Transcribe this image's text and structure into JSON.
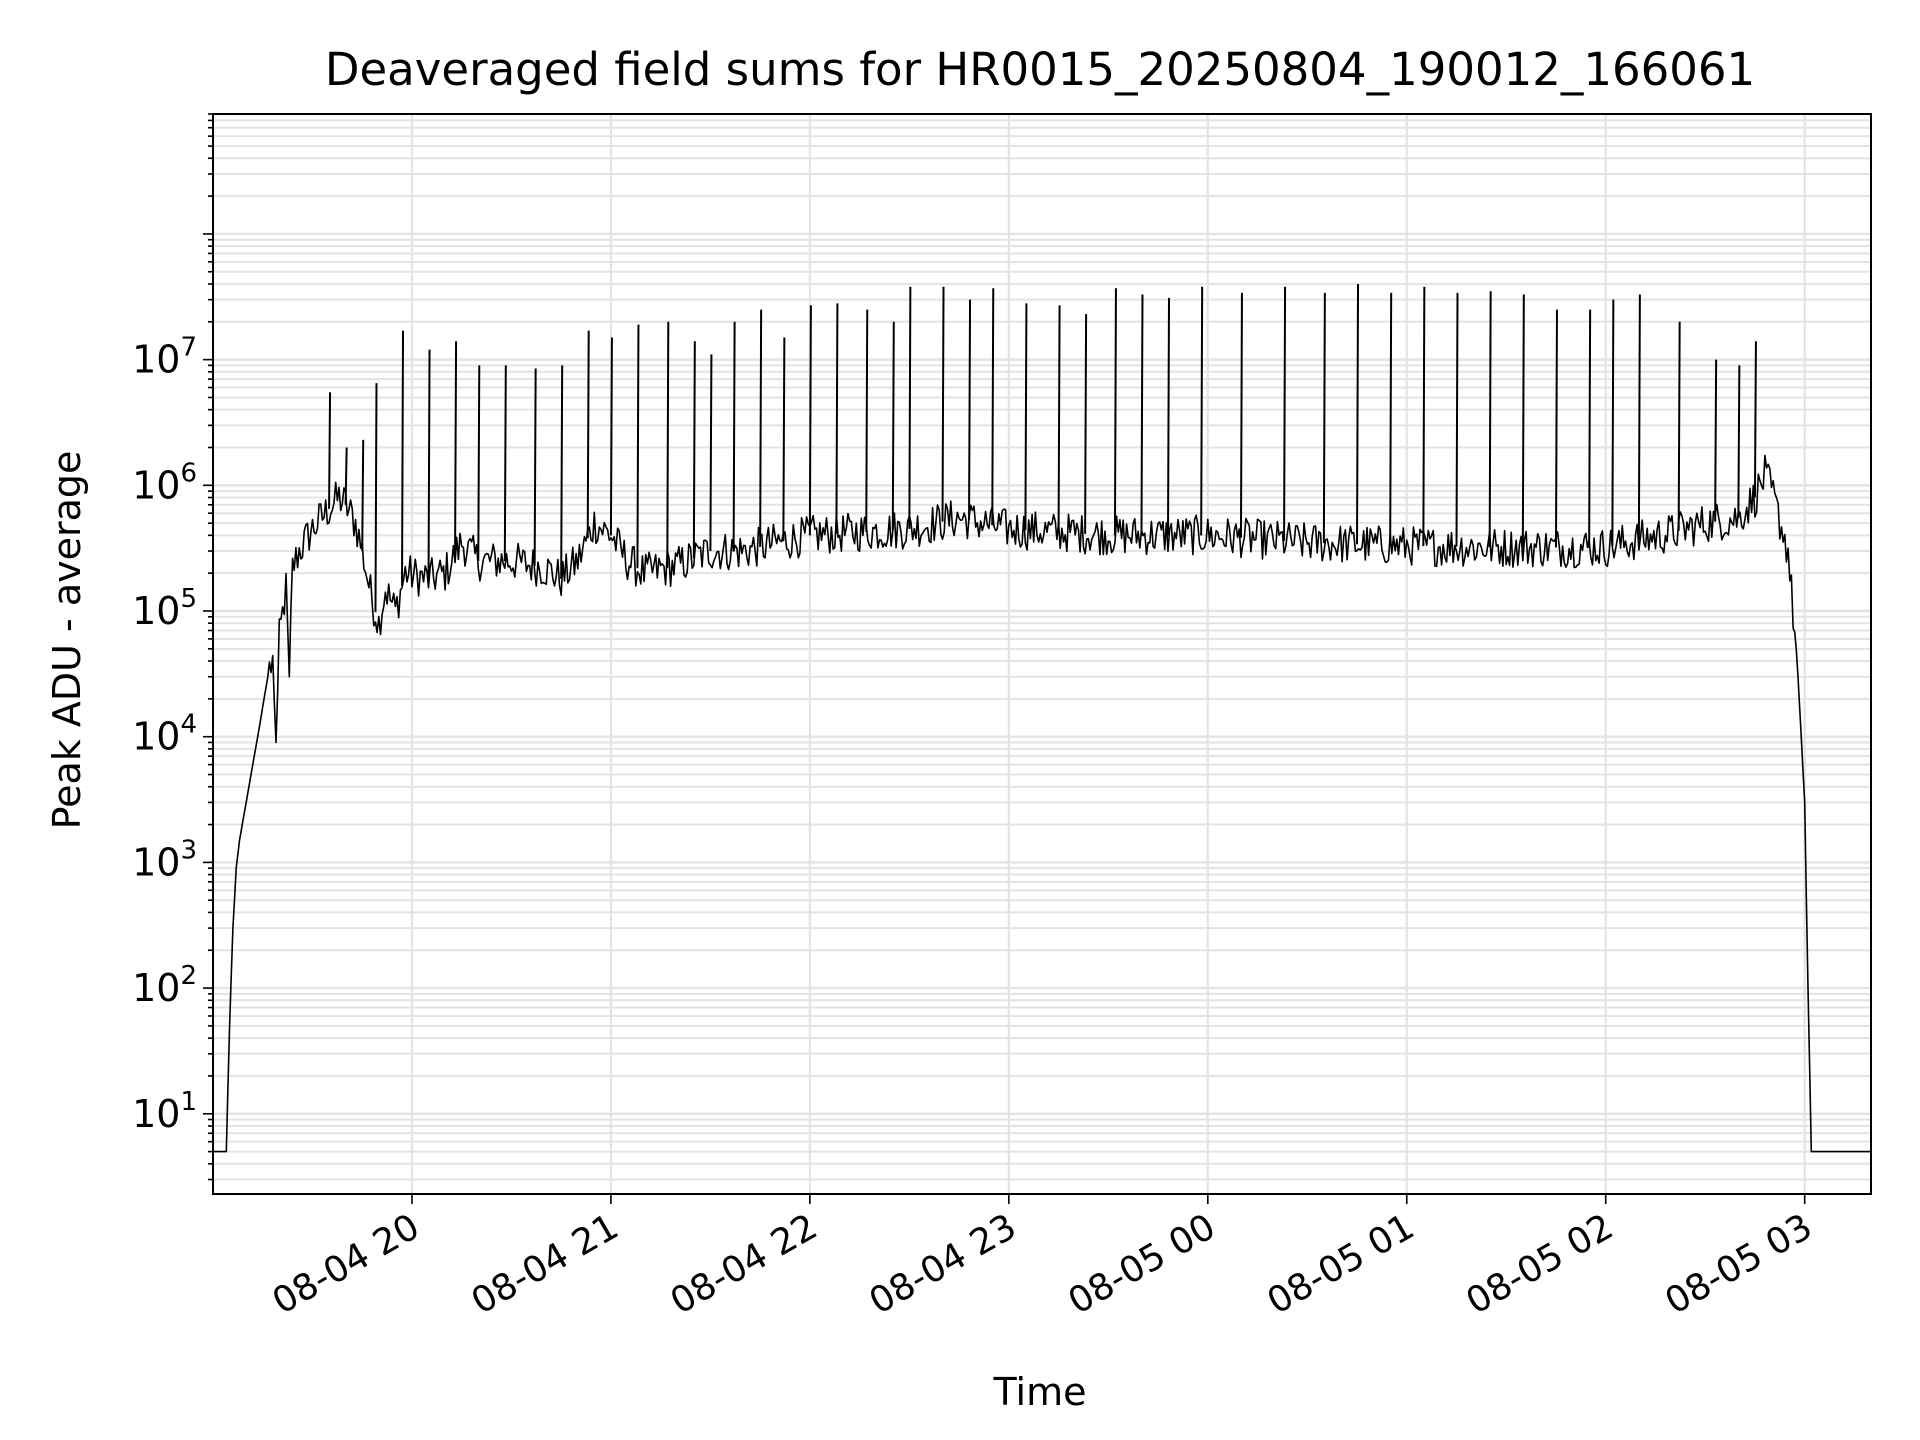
{
  "chart_data": {
    "type": "line",
    "title": "Deaveraged field sums for HR0015_20250804_190012_166061",
    "xlabel": "Time",
    "ylabel": "Peak ADU - average",
    "y_scale": "log",
    "ylim": [
      2.3,
      900000000
    ],
    "xlim": [
      "2025-08-04 19:00",
      "2025-08-05 03:20"
    ],
    "grid": true,
    "legend": "none",
    "line_color": "#000000",
    "x_ticks": [
      {
        "x": "2025-08-04 20:00",
        "label": "08-04 20"
      },
      {
        "x": "2025-08-04 21:00",
        "label": "08-04 21"
      },
      {
        "x": "2025-08-04 22:00",
        "label": "08-04 22"
      },
      {
        "x": "2025-08-04 23:00",
        "label": "08-04 23"
      },
      {
        "x": "2025-08-05 00:00",
        "label": "08-05 00"
      },
      {
        "x": "2025-08-05 01:00",
        "label": "08-05 01"
      },
      {
        "x": "2025-08-05 02:00",
        "label": "08-05 02"
      },
      {
        "x": "2025-08-05 03:00",
        "label": "08-05 03"
      }
    ],
    "y_ticks": [
      {
        "value": 10,
        "base": "10",
        "exp": "1"
      },
      {
        "value": 100,
        "base": "10",
        "exp": "2"
      },
      {
        "value": 1000,
        "base": "10",
        "exp": "3"
      },
      {
        "value": 10000,
        "base": "10",
        "exp": "4"
      },
      {
        "value": 100000,
        "base": "10",
        "exp": "5"
      },
      {
        "value": 1000000,
        "base": "10",
        "exp": "6"
      },
      {
        "value": 10000000,
        "base": "10",
        "exp": "7"
      }
    ],
    "series": [
      {
        "points": [
          [
            "2025-08-04 19:00",
            5
          ],
          [
            "2025-08-04 19:04",
            5
          ],
          [
            "2025-08-04 19:05",
            50
          ],
          [
            "2025-08-04 19:06",
            300
          ],
          [
            "2025-08-04 19:07",
            900
          ],
          [
            "2025-08-04 19:08",
            1500
          ],
          [
            "2025-08-04 19:10",
            3000
          ],
          [
            "2025-08-04 19:12",
            6000
          ],
          [
            "2025-08-04 19:14",
            12000
          ],
          [
            "2025-08-04 19:16",
            25000
          ],
          [
            "2025-08-04 19:17",
            35000
          ],
          [
            "2025-08-04 19:18",
            40000
          ],
          [
            "2025-08-04 19:19",
            9000
          ],
          [
            "2025-08-04 19:20",
            60000
          ],
          [
            "2025-08-04 19:21",
            95000
          ],
          [
            "2025-08-04 19:22",
            150000
          ],
          [
            "2025-08-04 19:23",
            30000
          ],
          [
            "2025-08-04 19:24",
            220000
          ],
          [
            "2025-08-04 19:26",
            300000
          ],
          [
            "2025-08-04 19:30",
            450000
          ],
          [
            "2025-08-04 19:35",
            650000
          ],
          [
            "2025-08-04 19:38",
            800000
          ],
          [
            "2025-08-04 19:40",
            700000
          ],
          [
            "2025-08-04 19:43",
            500000
          ],
          [
            "2025-08-04 19:45",
            300000
          ],
          [
            "2025-08-04 19:48",
            120000
          ],
          [
            "2025-08-04 19:50",
            80000
          ],
          [
            "2025-08-04 19:52",
            150000
          ],
          [
            "2025-08-04 19:55",
            100000
          ],
          [
            "2025-08-04 19:58",
            200000
          ],
          [
            "2025-08-04 20:05",
            180000
          ],
          [
            "2025-08-04 20:10",
            200000
          ],
          [
            "2025-08-04 20:15",
            350000
          ],
          [
            "2025-08-04 20:20",
            250000
          ],
          [
            "2025-08-04 20:30",
            250000
          ],
          [
            "2025-08-04 20:40",
            220000
          ],
          [
            "2025-08-04 20:45",
            180000
          ],
          [
            "2025-08-04 20:50",
            250000
          ],
          [
            "2025-08-04 20:55",
            500000
          ],
          [
            "2025-08-04 21:00",
            400000
          ],
          [
            "2025-08-04 21:05",
            250000
          ],
          [
            "2025-08-04 21:10",
            200000
          ],
          [
            "2025-08-04 21:20",
            230000
          ],
          [
            "2025-08-04 21:30",
            300000
          ],
          [
            "2025-08-04 21:40",
            300000
          ],
          [
            "2025-08-04 21:50",
            350000
          ],
          [
            "2025-08-04 22:00",
            400000
          ],
          [
            "2025-08-04 22:30",
            450000
          ],
          [
            "2025-08-04 22:45",
            550000
          ],
          [
            "2025-08-04 23:00",
            450000
          ],
          [
            "2025-08-04 23:30",
            400000
          ],
          [
            "2025-08-05 00:00",
            400000
          ],
          [
            "2025-08-05 00:30",
            350000
          ],
          [
            "2025-08-05 01:00",
            330000
          ],
          [
            "2025-08-05 01:30",
            320000
          ],
          [
            "2025-08-05 02:00",
            320000
          ],
          [
            "2025-08-05 02:20",
            420000
          ],
          [
            "2025-08-05 02:30",
            500000
          ],
          [
            "2025-08-05 02:40",
            550000
          ],
          [
            "2025-08-05 02:45",
            800000
          ],
          [
            "2025-08-05 02:48",
            1200000
          ],
          [
            "2025-08-05 02:50",
            900000
          ],
          [
            "2025-08-05 02:55",
            300000
          ],
          [
            "2025-08-05 02:58",
            30000
          ],
          [
            "2025-08-05 03:00",
            3000
          ],
          [
            "2025-08-05 03:01",
            100
          ],
          [
            "2025-08-05 03:02",
            5
          ],
          [
            "2025-08-05 03:20",
            5
          ]
        ],
        "spikes": [
          [
            "2025-08-04 19:35",
            5500000
          ],
          [
            "2025-08-04 19:40",
            2000000
          ],
          [
            "2025-08-04 19:45",
            2300000
          ],
          [
            "2025-08-04 19:49",
            6500000
          ],
          [
            "2025-08-04 19:57",
            17000000
          ],
          [
            "2025-08-04 20:05",
            12000000
          ],
          [
            "2025-08-04 20:13",
            14000000
          ],
          [
            "2025-08-04 20:20",
            9000000
          ],
          [
            "2025-08-04 20:28",
            9000000
          ],
          [
            "2025-08-04 20:37",
            8500000
          ],
          [
            "2025-08-04 20:45",
            9000000
          ],
          [
            "2025-08-04 20:53",
            17000000
          ],
          [
            "2025-08-04 21:00",
            15000000
          ],
          [
            "2025-08-04 21:08",
            19000000
          ],
          [
            "2025-08-04 21:17",
            20000000
          ],
          [
            "2025-08-04 21:25",
            14000000
          ],
          [
            "2025-08-04 21:30",
            11000000
          ],
          [
            "2025-08-04 21:37",
            20000000
          ],
          [
            "2025-08-04 21:45",
            25000000
          ],
          [
            "2025-08-04 21:52",
            15000000
          ],
          [
            "2025-08-04 22:00",
            27000000
          ],
          [
            "2025-08-04 22:08",
            28000000
          ],
          [
            "2025-08-04 22:17",
            25000000
          ],
          [
            "2025-08-04 22:25",
            20000000
          ],
          [
            "2025-08-04 22:30",
            38000000
          ],
          [
            "2025-08-04 22:40",
            38000000
          ],
          [
            "2025-08-04 22:48",
            30000000
          ],
          [
            "2025-08-04 22:55",
            37000000
          ],
          [
            "2025-08-04 23:05",
            28000000
          ],
          [
            "2025-08-04 23:15",
            27000000
          ],
          [
            "2025-08-04 23:23",
            23000000
          ],
          [
            "2025-08-04 23:32",
            37000000
          ],
          [
            "2025-08-04 23:40",
            33000000
          ],
          [
            "2025-08-04 23:48",
            31000000
          ],
          [
            "2025-08-04 23:58",
            38000000
          ],
          [
            "2025-08-05 00:10",
            34000000
          ],
          [
            "2025-08-05 00:23",
            38000000
          ],
          [
            "2025-08-05 00:35",
            34000000
          ],
          [
            "2025-08-05 00:45",
            40000000
          ],
          [
            "2025-08-05 00:55",
            34000000
          ],
          [
            "2025-08-05 01:05",
            38000000
          ],
          [
            "2025-08-05 01:15",
            34000000
          ],
          [
            "2025-08-05 01:25",
            35000000
          ],
          [
            "2025-08-05 01:35",
            33000000
          ],
          [
            "2025-08-05 01:45",
            25000000
          ],
          [
            "2025-08-05 01:55",
            25000000
          ],
          [
            "2025-08-05 02:02",
            30000000
          ],
          [
            "2025-08-05 02:10",
            33000000
          ],
          [
            "2025-08-05 02:22",
            20000000
          ],
          [
            "2025-08-05 02:33",
            10000000
          ],
          [
            "2025-08-05 02:40",
            9000000
          ],
          [
            "2025-08-05 02:45",
            14000000
          ]
        ]
      }
    ]
  }
}
